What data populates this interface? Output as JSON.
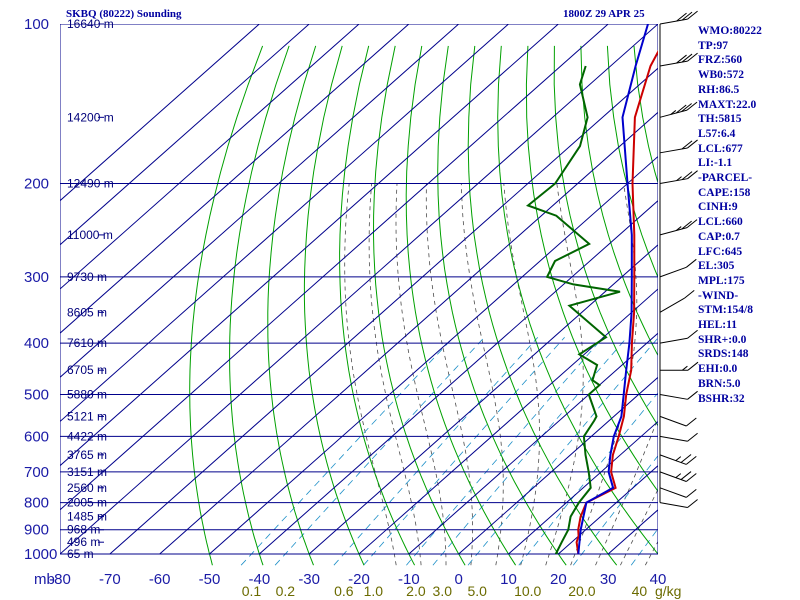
{
  "header": {
    "station": "SKBQ (80222) Sounding",
    "time": "1800Z 29 APR 25"
  },
  "indices": [
    "WMO:80222",
    "TP:97",
    "FRZ:560",
    "WB0:572",
    "RH:86.5",
    "MAXT:22.0",
    "TH:5815",
    "L57:6.4",
    "LCL:677",
    "LI:-1.1",
    "-PARCEL-",
    "CAPE:158",
    "CINH:9",
    "LCL:660",
    "CAP:0.7",
    "LFC:645",
    "EL:305",
    "MPL:175",
    "-WIND-",
    "STM:154/8",
    "HEL:11",
    "SHR+:0.0",
    "SRDS:148",
    "EHI:0.0",
    "BRN:5.0",
    "BSHR:32"
  ],
  "colors": {
    "background": "#ffffff",
    "grid": "#00008b",
    "dry_adiabat": "#00a000",
    "moist_adiabat": "#4d4d4d",
    "mixing_ratio": "#1e90c8",
    "temperature": "#cc0000",
    "dewpoint": "#006400",
    "parcel": "#0000cc",
    "text": "#0000a0",
    "mixing_label": "#6b6b00"
  },
  "chart_data": {
    "type": "line",
    "title": "SKBQ (80222) Sounding",
    "subtitle": "1800Z 29 APR 25",
    "skew_t": true,
    "xlim": [
      -80,
      40
    ],
    "ylim": [
      1000,
      100
    ],
    "y_scale": "log",
    "temperature_ticks": [
      "-80",
      "-70",
      "-60",
      "-50",
      "-40",
      "-30",
      "-20",
      "-10",
      "0",
      "10",
      "20",
      "30",
      "40"
    ],
    "pressure_axis_label": "mb",
    "pressure_ticks": [
      "100",
      "200",
      "300",
      "400",
      "500",
      "600",
      "700",
      "800",
      "900",
      "1000"
    ],
    "height_labels": [
      {
        "p": 100,
        "label": "16640 m"
      },
      {
        "p": 150,
        "label": "14200 m"
      },
      {
        "p": 200,
        "label": "12490 m"
      },
      {
        "p": 250,
        "label": "11000 m"
      },
      {
        "p": 300,
        "label": "9730 m"
      },
      {
        "p": 350,
        "label": "8605 m"
      },
      {
        "p": 400,
        "label": "7610 m"
      },
      {
        "p": 450,
        "label": "6705 m"
      },
      {
        "p": 500,
        "label": "5880 m"
      },
      {
        "p": 550,
        "label": "5121 m"
      },
      {
        "p": 600,
        "label": "4422 m"
      },
      {
        "p": 650,
        "label": "3765 m"
      },
      {
        "p": 700,
        "label": "3151 m"
      },
      {
        "p": 750,
        "label": "2560 m"
      },
      {
        "p": 800,
        "label": "2005 m"
      },
      {
        "p": 850,
        "label": "1485 m"
      },
      {
        "p": 900,
        "label": "968 m"
      },
      {
        "p": 950,
        "label": "496 m"
      },
      {
        "p": 1000,
        "label": "65 m"
      }
    ],
    "mixing_ratio_axis_label": "g/kg",
    "mixing_ratio_labels": [
      {
        "w": 0.1,
        "label": "0.1"
      },
      {
        "w": 0.2,
        "label": "0.2"
      },
      {
        "w": 0.6,
        "label": "0.6"
      },
      {
        "w": 1.0,
        "label": "1.0"
      },
      {
        "w": 2.0,
        "label": "2.0"
      },
      {
        "w": 3.0,
        "label": "3.0"
      },
      {
        "w": 5.0,
        "label": "5.0"
      },
      {
        "w": 10.0,
        "label": "10.0"
      },
      {
        "w": 20.0,
        "label": "20.0"
      },
      {
        "w": 40.0,
        "label": "40"
      }
    ],
    "series": [
      {
        "key": "temperature",
        "points": [
          [
            1000,
            24.0
          ],
          [
            950,
            21.0
          ],
          [
            925,
            20.0
          ],
          [
            900,
            18.5
          ],
          [
            850,
            16.0
          ],
          [
            800,
            14.0
          ],
          [
            750,
            16.5
          ],
          [
            700,
            12.0
          ],
          [
            650,
            8.5
          ],
          [
            600,
            5.5
          ],
          [
            550,
            2.0
          ],
          [
            500,
            -2.5
          ],
          [
            450,
            -7.0
          ],
          [
            400,
            -13.0
          ],
          [
            350,
            -19.5
          ],
          [
            300,
            -27.5
          ],
          [
            250,
            -37.0
          ],
          [
            200,
            -49.0
          ],
          [
            150,
            -63.5
          ],
          [
            120,
            -72.0
          ],
          [
            100,
            -77.0
          ]
        ]
      },
      {
        "key": "dewpoint",
        "points": [
          [
            1000,
            19.5
          ],
          [
            950,
            18.0
          ],
          [
            900,
            16.5
          ],
          [
            850,
            14.0
          ],
          [
            800,
            12.5
          ],
          [
            750,
            11.5
          ],
          [
            700,
            7.5
          ],
          [
            650,
            3.0
          ],
          [
            600,
            -1.5
          ],
          [
            560,
            -3.0
          ],
          [
            550,
            -3.5
          ],
          [
            500,
            -10.0
          ],
          [
            480,
            -10.0
          ],
          [
            470,
            -12.5
          ],
          [
            440,
            -15.0
          ],
          [
            420,
            -21.0
          ],
          [
            390,
            -19.5
          ],
          [
            340,
            -34.0
          ],
          [
            320,
            -27.0
          ],
          [
            310,
            -38.0
          ],
          [
            300,
            -45.0
          ],
          [
            280,
            -47.0
          ],
          [
            260,
            -44.0
          ],
          [
            230,
            -57.0
          ],
          [
            220,
            -65.0
          ],
          [
            200,
            -64.5
          ],
          [
            170,
            -68.0
          ],
          [
            150,
            -73.0
          ],
          [
            130,
            -82.0
          ],
          [
            120,
            -85.0
          ]
        ]
      },
      {
        "key": "parcel",
        "points": [
          [
            1000,
            24.0
          ],
          [
            900,
            19.0
          ],
          [
            800,
            14.0
          ],
          [
            750,
            16.0
          ],
          [
            700,
            11.5
          ],
          [
            650,
            8.0
          ],
          [
            600,
            4.5
          ],
          [
            550,
            1.5
          ],
          [
            500,
            -3.0
          ],
          [
            450,
            -8.0
          ],
          [
            400,
            -13.5
          ],
          [
            350,
            -20.0
          ],
          [
            300,
            -28.0
          ],
          [
            250,
            -37.5
          ],
          [
            200,
            -50.0
          ],
          [
            150,
            -66.0
          ],
          [
            120,
            -75.0
          ],
          [
            100,
            -82.0
          ]
        ]
      }
    ],
    "wind_barbs": [
      {
        "p": 100,
        "dir": 80,
        "spd": 30
      },
      {
        "p": 120,
        "dir": 80,
        "spd": 30
      },
      {
        "p": 150,
        "dir": 75,
        "spd": 25
      },
      {
        "p": 175,
        "dir": 80,
        "spd": 20
      },
      {
        "p": 200,
        "dir": 80,
        "spd": 15
      },
      {
        "p": 250,
        "dir": 75,
        "spd": 15
      },
      {
        "p": 300,
        "dir": 70,
        "spd": 10
      },
      {
        "p": 350,
        "dir": 60,
        "spd": 10
      },
      {
        "p": 400,
        "dir": 80,
        "spd": 10
      },
      {
        "p": 450,
        "dir": 90,
        "spd": 5
      },
      {
        "p": 500,
        "dir": 100,
        "spd": 10
      },
      {
        "p": 550,
        "dir": 110,
        "spd": 10
      },
      {
        "p": 600,
        "dir": 100,
        "spd": 10
      },
      {
        "p": 650,
        "dir": 110,
        "spd": 15
      },
      {
        "p": 700,
        "dir": 110,
        "spd": 15
      },
      {
        "p": 750,
        "dir": 110,
        "spd": 10
      },
      {
        "p": 800,
        "dir": 100,
        "spd": 10
      }
    ],
    "grid": true,
    "legend": "none"
  }
}
